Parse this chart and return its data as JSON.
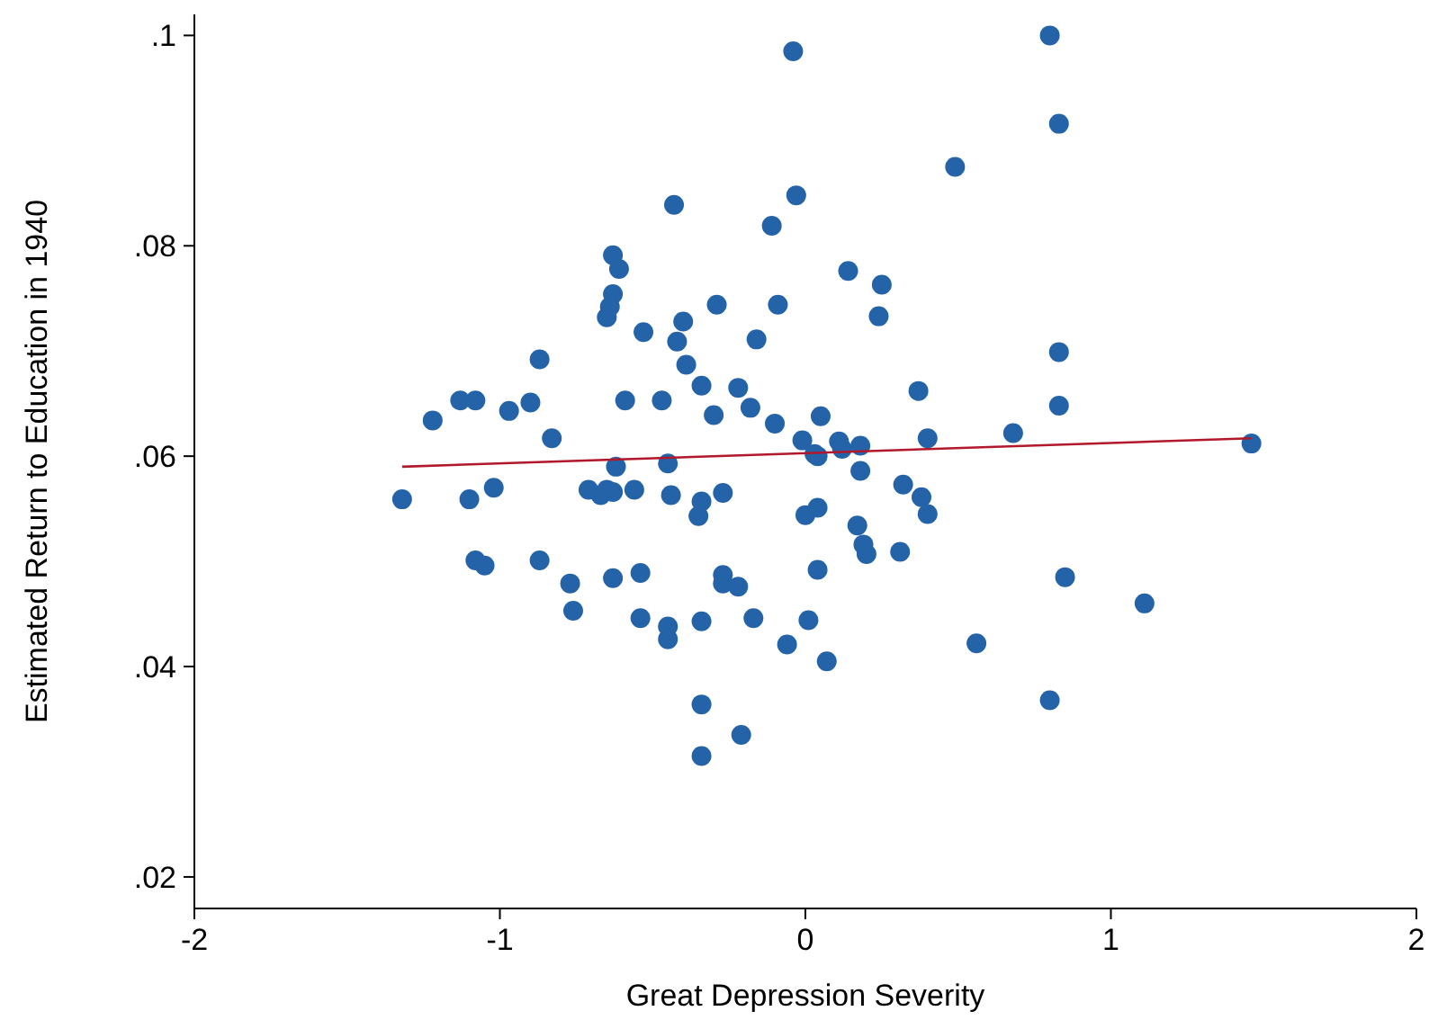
{
  "chart_data": {
    "type": "scatter",
    "xlabel": "Great Depression Severity",
    "ylabel": "Estimated Return to Education in 1940",
    "xlim": [
      -2,
      2
    ],
    "ylim": [
      0.017,
      0.102
    ],
    "xticks": [
      -2,
      -1,
      0,
      1,
      2
    ],
    "yticks": [
      {
        "value": 0.02,
        "label": ".02"
      },
      {
        "value": 0.04,
        "label": ".04"
      },
      {
        "value": 0.06,
        "label": ".06"
      },
      {
        "value": 0.08,
        "label": ".08"
      },
      {
        "value": 0.1,
        "label": ".1"
      }
    ],
    "grid": false,
    "series": [
      {
        "marker": "circle",
        "color": "#2463a8",
        "x": [
          -1.32,
          -1.22,
          -1.13,
          -1.08,
          -1.1,
          -1.08,
          -1.05,
          -1.02,
          -0.97,
          -0.9,
          -0.87,
          -0.83,
          -0.87,
          -0.77,
          -0.76,
          -0.71,
          -0.67,
          -0.65,
          -0.63,
          -0.63,
          -0.61,
          -0.63,
          -0.64,
          -0.65,
          -0.53,
          -0.59,
          -0.47,
          -0.62,
          -0.45,
          -0.43,
          -0.29,
          -0.4,
          -0.42,
          -0.39,
          -0.34,
          -0.22,
          -0.3,
          -0.18,
          -0.1,
          -0.16,
          -0.09,
          -0.11,
          -0.03,
          -0.01,
          -0.56,
          -0.44,
          -0.34,
          -0.35,
          -0.27,
          0.0,
          -0.63,
          -0.54,
          -0.54,
          -0.45,
          -0.45,
          -0.34,
          -0.27,
          -0.27,
          -0.22,
          -0.17,
          -0.06,
          -0.34,
          -0.21,
          -0.34,
          0.14,
          0.25,
          0.24,
          0.83,
          0.37,
          0.83,
          0.68,
          1.46,
          0.4,
          0.05,
          0.03,
          0.04,
          0.11,
          0.12,
          0.18,
          0.18,
          0.32,
          0.38,
          0.4,
          0.04,
          0.17,
          0.19,
          0.2,
          0.31,
          0.04,
          0.01,
          0.07,
          0.85,
          1.11,
          0.56,
          0.8,
          0.8,
          0.83,
          0.49,
          -0.04
        ],
        "values": [
          0.0559,
          0.0634,
          0.0653,
          0.0653,
          0.0559,
          0.0501,
          0.0496,
          0.057,
          0.0643,
          0.0651,
          0.0692,
          0.0617,
          0.0501,
          0.0479,
          0.0453,
          0.0568,
          0.0563,
          0.0568,
          0.0566,
          0.0791,
          0.0778,
          0.0754,
          0.0742,
          0.0732,
          0.0718,
          0.0653,
          0.0653,
          0.059,
          0.0593,
          0.0839,
          0.0744,
          0.0728,
          0.0709,
          0.0687,
          0.0667,
          0.0665,
          0.0639,
          0.0646,
          0.0631,
          0.0711,
          0.0744,
          0.0819,
          0.0848,
          0.0615,
          0.0568,
          0.0563,
          0.0557,
          0.0543,
          0.0565,
          0.0544,
          0.0484,
          0.0489,
          0.0446,
          0.0438,
          0.0426,
          0.0443,
          0.0487,
          0.0479,
          0.0476,
          0.0446,
          0.0421,
          0.0364,
          0.0335,
          0.0315,
          0.0776,
          0.0763,
          0.0733,
          0.0699,
          0.0662,
          0.0648,
          0.0622,
          0.0612,
          0.0617,
          0.0638,
          0.0602,
          0.06,
          0.0614,
          0.0607,
          0.061,
          0.0586,
          0.0573,
          0.0561,
          0.0545,
          0.0551,
          0.0534,
          0.0516,
          0.0507,
          0.0509,
          0.0492,
          0.0444,
          0.0405,
          0.0485,
          0.046,
          0.0422,
          0.0368,
          0.1,
          0.0916,
          0.0875,
          0.0985
        ]
      },
      {
        "type": "line",
        "color": "#b2182b",
        "x": [
          -1.32,
          1.46
        ],
        "values": [
          0.059,
          0.0617
        ]
      }
    ]
  }
}
